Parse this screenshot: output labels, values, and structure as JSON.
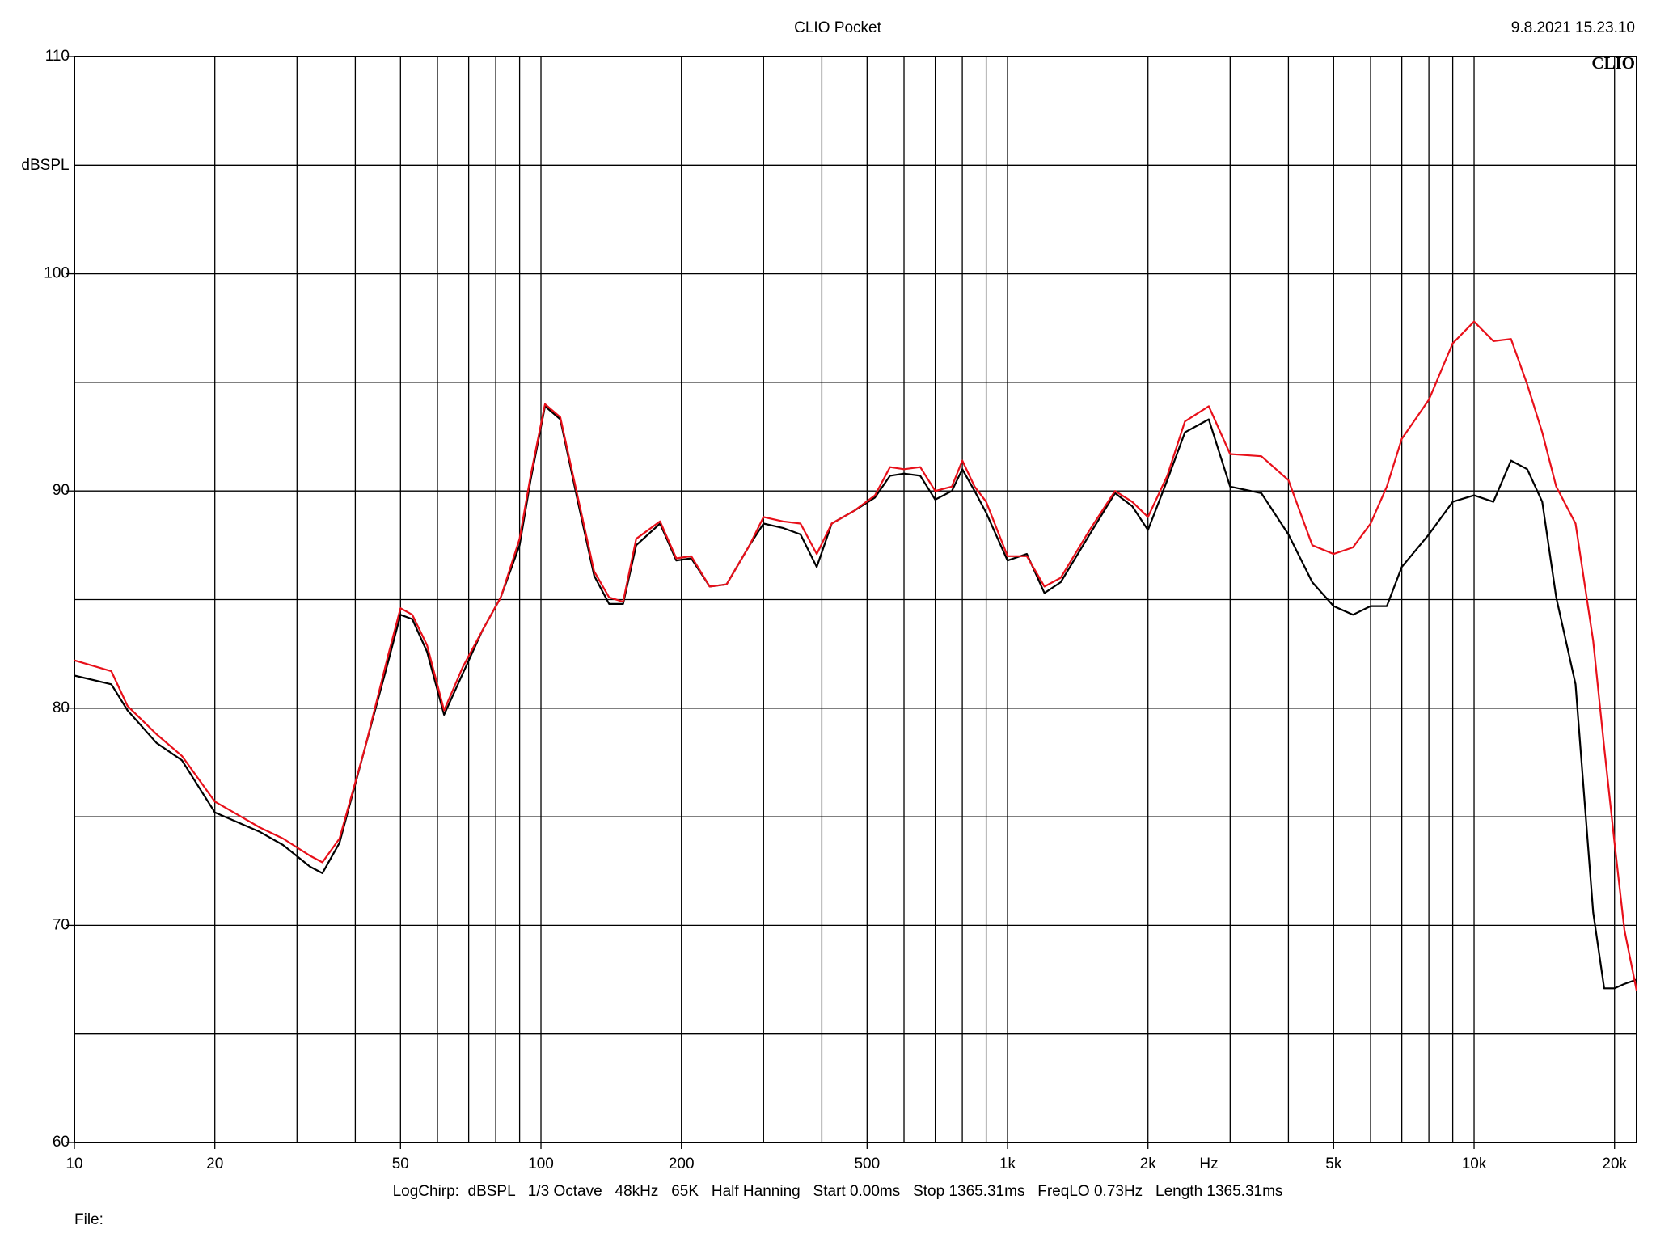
{
  "chart_data": {
    "type": "line",
    "title": "CLIO Pocket",
    "timestamp": "9.8.2021 15.23.10",
    "logo": "CLIO",
    "y_label": "dBSPL",
    "x_label": "Hz",
    "footer": "LogChirp:  dBSPL   1/3 Octave   48kHz   65K   Half Hanning   Start 0.00ms   Stop 1365.31ms   FreqLO 0.73Hz   Length 1365.31ms",
    "file_label": "File:",
    "x_scale": "log",
    "xlim": [
      10,
      22300
    ],
    "ylim": [
      60,
      110
    ],
    "xticks": [
      10,
      20,
      50,
      100,
      200,
      500,
      {
        "value": 1000,
        "label": "1k"
      },
      {
        "value": 2000,
        "label": "2k"
      },
      {
        "value": 5000,
        "label": "5k"
      },
      {
        "value": 10000,
        "label": "10k"
      },
      {
        "value": 20000,
        "label": "20k"
      }
    ],
    "x_grid": [
      20,
      30,
      40,
      50,
      60,
      70,
      80,
      90,
      100,
      200,
      300,
      400,
      500,
      600,
      700,
      800,
      900,
      1000,
      2000,
      3000,
      4000,
      5000,
      6000,
      7000,
      8000,
      9000,
      10000,
      20000
    ],
    "yticks": [
      60,
      70,
      80,
      90,
      100,
      110
    ],
    "y_grid": [
      65,
      70,
      75,
      80,
      85,
      90,
      95,
      100,
      105
    ],
    "grid": true,
    "x": [
      10,
      12,
      13,
      15,
      17,
      20,
      25,
      28,
      32,
      34,
      37,
      42,
      47,
      50,
      53,
      57,
      62,
      68,
      75,
      82,
      90,
      95,
      102,
      110,
      120,
      130,
      140,
      150,
      160,
      180,
      195,
      210,
      230,
      250,
      280,
      300,
      330,
      360,
      390,
      420,
      470,
      520,
      560,
      600,
      650,
      700,
      760,
      800,
      850,
      900,
      1000,
      1100,
      1200,
      1300,
      1500,
      1700,
      1850,
      2000,
      2200,
      2400,
      2700,
      3000,
      3500,
      4000,
      4500,
      5000,
      5500,
      6000,
      6500,
      7000,
      8000,
      9000,
      10000,
      11000,
      12000,
      13000,
      14000,
      15000,
      16500,
      18000,
      19000,
      20000,
      21000,
      22300
    ],
    "series": [
      {
        "color": "#000000",
        "values": [
          81.5,
          81.1,
          79.9,
          78.4,
          77.6,
          75.2,
          74.3,
          73.7,
          72.7,
          72.4,
          73.8,
          78.2,
          82.1,
          84.3,
          84.1,
          82.6,
          79.7,
          81.6,
          83.6,
          85.1,
          87.5,
          90.5,
          93.9,
          93.3,
          89.5,
          86.1,
          84.8,
          84.8,
          87.5,
          88.5,
          86.8,
          86.9,
          85.6,
          85.7,
          87.5,
          88.5,
          88.3,
          88.0,
          86.5,
          88.5,
          89.1,
          89.7,
          90.7,
          90.8,
          90.7,
          89.6,
          90.0,
          91.0,
          90.0,
          89.0,
          86.8,
          87.1,
          85.3,
          85.8,
          88.0,
          89.9,
          89.3,
          88.2,
          90.5,
          92.7,
          93.3,
          90.2,
          89.9,
          88.0,
          85.8,
          84.7,
          84.3,
          84.7,
          84.7,
          86.5,
          88.0,
          89.5,
          89.8,
          89.5,
          91.4,
          91.0,
          89.5,
          85.1,
          81.1,
          70.6,
          67.1,
          67.1,
          67.3,
          67.5
        ]
      },
      {
        "color": "#e8101a",
        "values": [
          82.2,
          81.7,
          80.1,
          78.8,
          77.8,
          75.7,
          74.5,
          74.0,
          73.2,
          72.9,
          74.0,
          78.2,
          82.4,
          84.6,
          84.3,
          82.9,
          79.9,
          81.9,
          83.6,
          85.1,
          87.8,
          90.7,
          94.0,
          93.4,
          89.7,
          86.3,
          85.1,
          84.9,
          87.8,
          88.6,
          86.9,
          87.0,
          85.6,
          85.7,
          87.5,
          88.8,
          88.6,
          88.5,
          87.1,
          88.5,
          89.1,
          89.8,
          91.1,
          91.0,
          91.1,
          90.0,
          90.2,
          91.4,
          90.2,
          89.5,
          87.0,
          87.0,
          85.6,
          86.0,
          88.2,
          90.0,
          89.5,
          88.8,
          90.7,
          93.2,
          93.9,
          91.7,
          91.6,
          90.5,
          87.5,
          87.1,
          87.4,
          88.5,
          90.2,
          92.4,
          94.2,
          96.8,
          97.8,
          96.9,
          97.0,
          94.9,
          92.7,
          90.2,
          88.5,
          83.1,
          78.2,
          73.8,
          69.8,
          67.0
        ]
      }
    ]
  }
}
